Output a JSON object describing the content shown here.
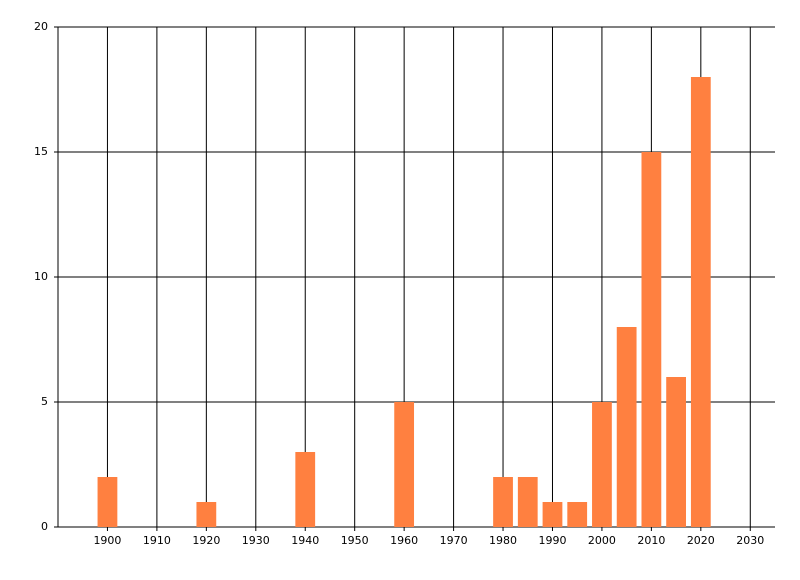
{
  "chart_data": {
    "type": "bar",
    "x": [
      1900,
      1920,
      1940,
      1960,
      1980,
      1985,
      1990,
      1995,
      2000,
      2005,
      2010,
      2015,
      2020
    ],
    "values": [
      2,
      1,
      3,
      5,
      2,
      2,
      1,
      1,
      5,
      8,
      15,
      6,
      18
    ],
    "color": "#ff8040",
    "xlim": [
      1890,
      2035
    ],
    "xticks": [
      1900,
      1910,
      1920,
      1930,
      1940,
      1950,
      1960,
      1970,
      1980,
      1990,
      2000,
      2010,
      2020,
      2030
    ],
    "ylim": [
      0,
      20
    ],
    "yticks": [
      0,
      5,
      10,
      15,
      20
    ],
    "grid": true
  }
}
